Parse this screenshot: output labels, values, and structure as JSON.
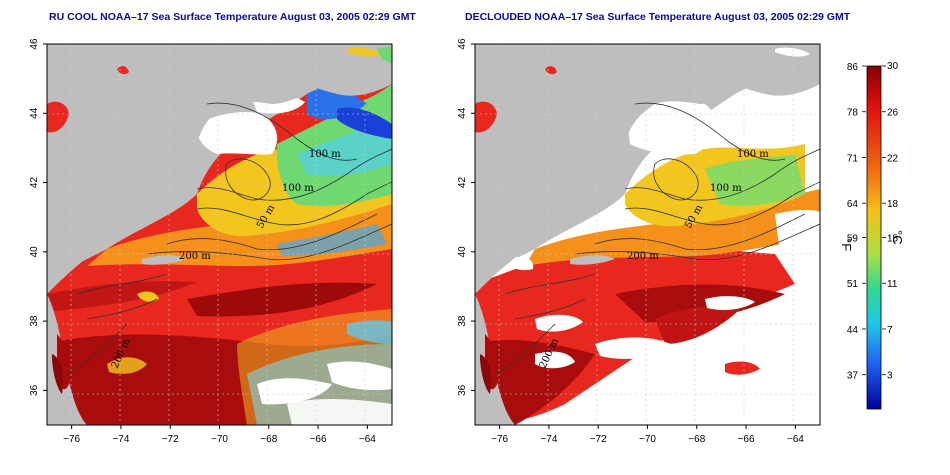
{
  "maps": [
    {
      "id": "left",
      "title": "RU COOL NOAA–17 Sea Surface Temperature August 03, 2005 02:29 GMT"
    },
    {
      "id": "right",
      "title": "DECLOUDED NOAA–17 Sea Surface Temperature August 03, 2005 02:29 GMT"
    }
  ],
  "axes": {
    "lon_ticks": [
      "−76",
      "−74",
      "−72",
      "−70",
      "−68",
      "−66",
      "−64"
    ],
    "lat_ticks": [
      "36",
      "38",
      "40",
      "42",
      "44",
      "46"
    ],
    "lon_range": [
      -77,
      -63
    ],
    "lat_range": [
      35,
      46
    ]
  },
  "contour_labels": [
    "100 m",
    "100 m",
    "50 m",
    "200 m",
    "200 m"
  ],
  "colorbar": {
    "fahrenheit_ticks": [
      "86",
      "78",
      "71",
      "64",
      "59",
      "51",
      "44",
      "37"
    ],
    "celsius_ticks": [
      "30",
      "26",
      "22",
      "18",
      "15",
      "11",
      "7",
      "3"
    ],
    "fahrenheit_unit": "°F",
    "celsius_unit": "°C",
    "range_c": [
      0,
      30
    ]
  },
  "colors": {
    "land": "#bebebe",
    "cloud": "#ffffff",
    "warm": "#e8281e",
    "hot": "#a80c0c",
    "mid": "#f59a1a",
    "cool": "#5fd27a",
    "cold": "#1a50e0"
  }
}
